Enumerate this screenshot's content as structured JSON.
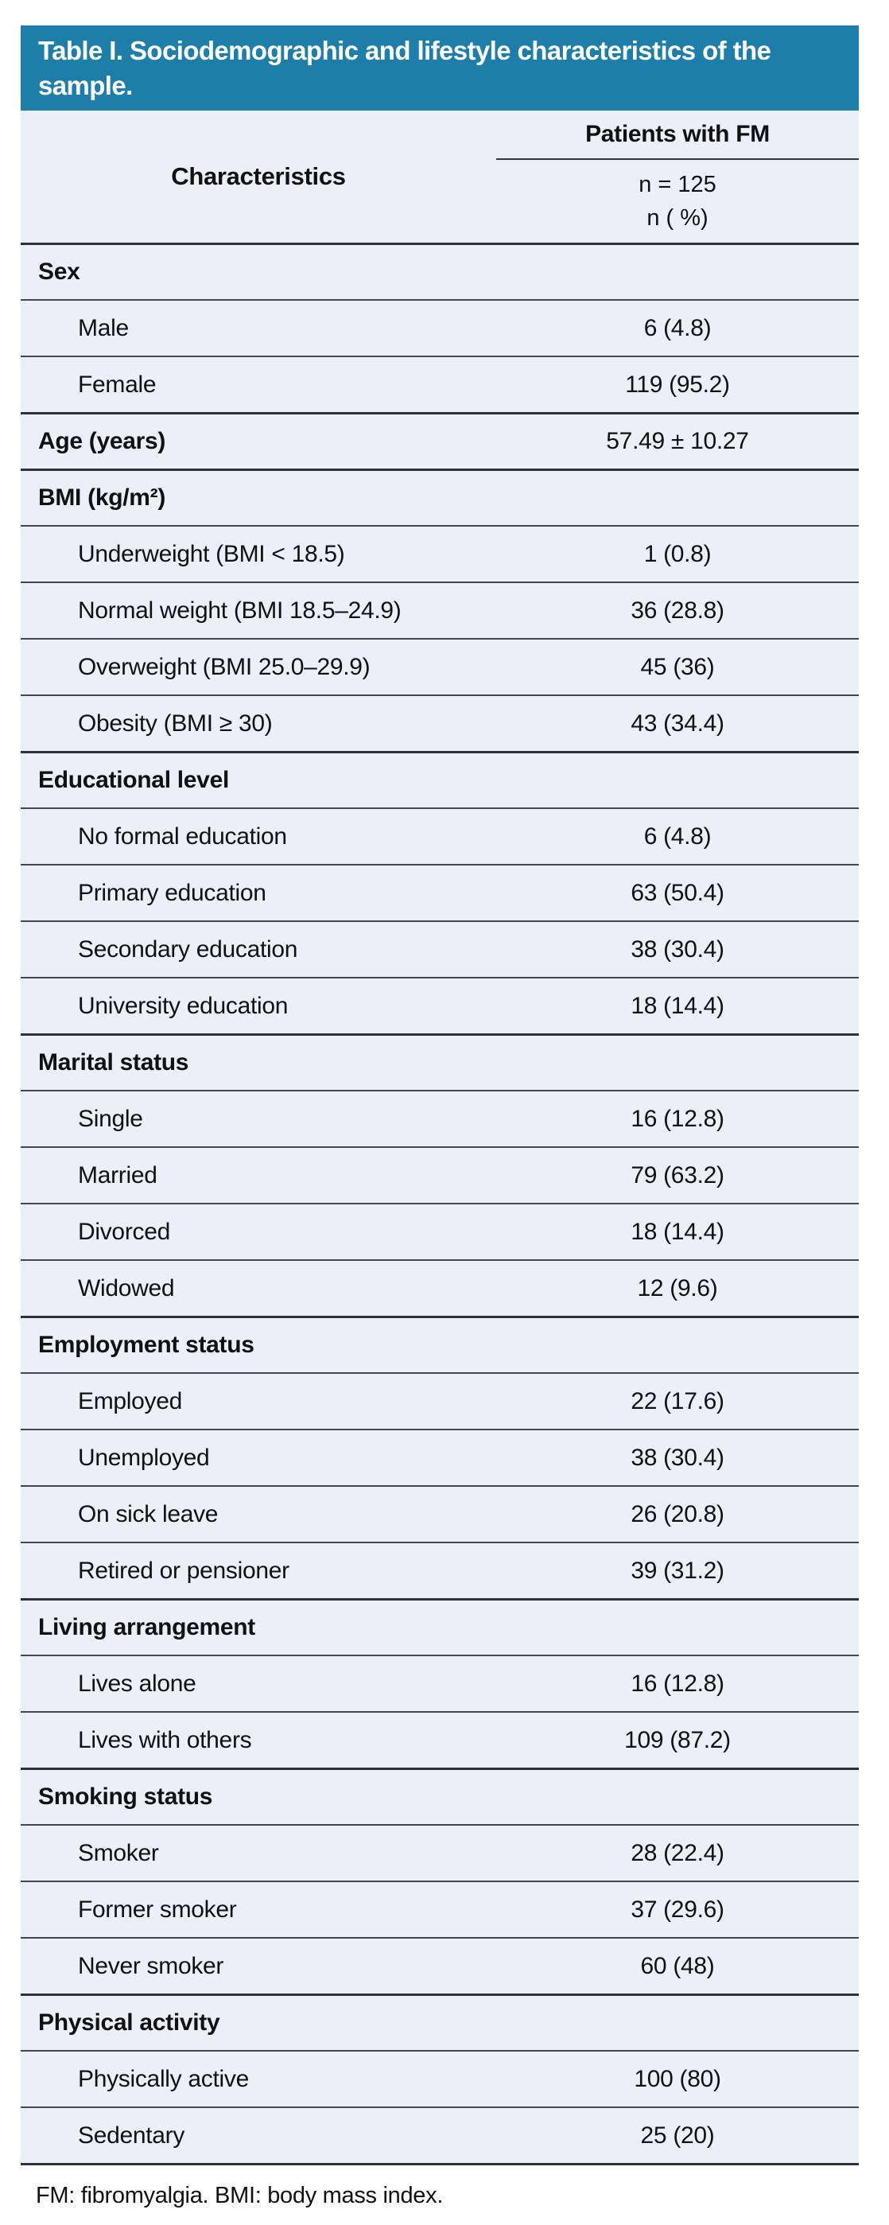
{
  "colors": {
    "header_bg": "#1c7ea9",
    "header_text": "#ffffff",
    "row_bg": "#ebeff7",
    "rule": "#42454b"
  },
  "table": {
    "title": "Table I. Sociodemographic and lifestyle characteristics of the sample.",
    "col_header": {
      "characteristics": "Characteristics",
      "group": "Patients with FM",
      "sub_n": "n = 125",
      "sub_pct": "n ( %)"
    },
    "sections": [
      {
        "label": "Sex",
        "value": "",
        "rows": [
          {
            "label": "Male",
            "value": "6 (4.8)"
          },
          {
            "label": "Female",
            "value": "119 (95.2)"
          }
        ]
      },
      {
        "label": "Age (years)",
        "value": "57.49 ± 10.27",
        "rows": []
      },
      {
        "label": "BMI (kg/m²)",
        "value": "",
        "rows": [
          {
            "label": "Underweight (BMI < 18.5)",
            "value": "1 (0.8)"
          },
          {
            "label": "Normal weight (BMI 18.5–24.9)",
            "value": "36 (28.8)"
          },
          {
            "label": "Overweight (BMI 25.0–29.9)",
            "value": "45 (36)"
          },
          {
            "label": "Obesity (BMI ≥ 30)",
            "value": "43 (34.4)"
          }
        ]
      },
      {
        "label": "Educational level",
        "value": "",
        "rows": [
          {
            "label": "No formal education",
            "value": "6 (4.8)"
          },
          {
            "label": "Primary education",
            "value": "63 (50.4)"
          },
          {
            "label": "Secondary education",
            "value": "38 (30.4)"
          },
          {
            "label": "University education",
            "value": "18 (14.4)"
          }
        ]
      },
      {
        "label": "Marital status",
        "value": "",
        "rows": [
          {
            "label": "Single",
            "value": "16 (12.8)"
          },
          {
            "label": "Married",
            "value": "79 (63.2)"
          },
          {
            "label": "Divorced",
            "value": "18 (14.4)"
          },
          {
            "label": "Widowed",
            "value": "12 (9.6)"
          }
        ]
      },
      {
        "label": "Employment status",
        "value": "",
        "rows": [
          {
            "label": "Employed",
            "value": "22 (17.6)"
          },
          {
            "label": "Unemployed",
            "value": "38 (30.4)"
          },
          {
            "label": "On sick leave",
            "value": "26 (20.8)"
          },
          {
            "label": "Retired or pensioner",
            "value": "39 (31.2)"
          }
        ]
      },
      {
        "label": "Living arrangement",
        "value": "",
        "rows": [
          {
            "label": "Lives alone",
            "value": "16 (12.8)"
          },
          {
            "label": "Lives with others",
            "value": "109 (87.2)"
          }
        ]
      },
      {
        "label": "Smoking status",
        "value": "",
        "rows": [
          {
            "label": "Smoker",
            "value": "28 (22.4)"
          },
          {
            "label": "Former smoker",
            "value": "37 (29.6)"
          },
          {
            "label": "Never smoker",
            "value": "60 (48)"
          }
        ]
      },
      {
        "label": "Physical activity",
        "value": "",
        "rows": [
          {
            "label": "Physically active",
            "value": "100 (80)"
          },
          {
            "label": "Sedentary",
            "value": "25 (20)"
          }
        ]
      }
    ],
    "footnote": "FM: fibromyalgia. BMI: body mass index."
  }
}
